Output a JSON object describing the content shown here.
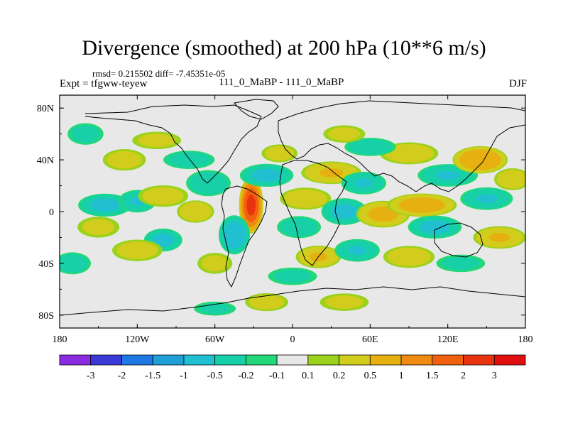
{
  "chart_data": {
    "type": "heatmap",
    "title": "Divergence (smoothed) at 200 hPa (10**6 m/s)",
    "stats": "rmsd= 0.215502 diff= -7.45351e-05",
    "experiment": "Expt = tfgww-teyew",
    "case": "111_0_MaBP - 111_0_MaBP",
    "season": "DJF",
    "xlim": [
      -180,
      180
    ],
    "ylim": [
      -90,
      90
    ],
    "xticks": [
      {
        "value": -180,
        "label": "180"
      },
      {
        "value": -120,
        "label": "120W"
      },
      {
        "value": -60,
        "label": "60W"
      },
      {
        "value": 0,
        "label": "0"
      },
      {
        "value": 60,
        "label": "60E"
      },
      {
        "value": 120,
        "label": "120E"
      },
      {
        "value": 180,
        "label": "180"
      }
    ],
    "yticks": [
      {
        "value": 80,
        "label": "80N"
      },
      {
        "value": 40,
        "label": "40N"
      },
      {
        "value": 0,
        "label": "0"
      },
      {
        "value": -40,
        "label": "40S"
      },
      {
        "value": -80,
        "label": "80S"
      }
    ],
    "colorbar": {
      "colors": [
        "#8a2be2",
        "#3a3ad8",
        "#1e78e6",
        "#1f9ed8",
        "#20c0d0",
        "#18d0a8",
        "#22d878",
        "#e8e8e8",
        "#9ad21c",
        "#d2cc1c",
        "#e6b010",
        "#f08a10",
        "#f0600e",
        "#e8340e",
        "#e01010"
      ],
      "labels": [
        "-3",
        "-2",
        "-1.5",
        "-1",
        "-0.5",
        "-0.2",
        "-0.1",
        "0.1",
        "0.2",
        "0.5",
        "1",
        "1.5",
        "2",
        "3"
      ]
    },
    "features": [
      {
        "lon": -32,
        "lat": 5,
        "value": 2.0,
        "sx": 6,
        "sy": 14
      },
      {
        "lon": -20,
        "lat": 28,
        "value": -0.6,
        "sx": 14,
        "sy": 6
      },
      {
        "lon": -45,
        "lat": -18,
        "value": -0.8,
        "sx": 8,
        "sy": 10
      },
      {
        "lon": -75,
        "lat": 0,
        "value": 0.45,
        "sx": 10,
        "sy": 6
      },
      {
        "lon": -65,
        "lat": 22,
        "value": -0.45,
        "sx": 12,
        "sy": 7
      },
      {
        "lon": -100,
        "lat": -22,
        "value": -0.6,
        "sx": 10,
        "sy": 6
      },
      {
        "lon": -145,
        "lat": 5,
        "value": -0.6,
        "sx": 14,
        "sy": 6
      },
      {
        "lon": -120,
        "lat": 8,
        "value": -0.5,
        "sx": 10,
        "sy": 6
      },
      {
        "lon": -100,
        "lat": 12,
        "value": 0.35,
        "sx": 14,
        "sy": 6
      },
      {
        "lon": -150,
        "lat": -12,
        "value": 0.3,
        "sx": 12,
        "sy": 6
      },
      {
        "lon": -120,
        "lat": -30,
        "value": 0.35,
        "sx": 14,
        "sy": 6
      },
      {
        "lon": -80,
        "lat": 40,
        "value": -0.4,
        "sx": 14,
        "sy": 5
      },
      {
        "lon": -130,
        "lat": 40,
        "value": 0.35,
        "sx": 12,
        "sy": 6
      },
      {
        "lon": -160,
        "lat": 60,
        "value": -0.35,
        "sx": 10,
        "sy": 6
      },
      {
        "lon": -105,
        "lat": 55,
        "value": 0.3,
        "sx": 14,
        "sy": 5
      },
      {
        "lon": -170,
        "lat": -40,
        "value": -0.4,
        "sx": 10,
        "sy": 6
      },
      {
        "lon": -60,
        "lat": -40,
        "value": 0.3,
        "sx": 10,
        "sy": 6
      },
      {
        "lon": 10,
        "lat": 10,
        "value": 0.4,
        "sx": 14,
        "sy": 6
      },
      {
        "lon": 30,
        "lat": 30,
        "value": 0.5,
        "sx": 16,
        "sy": 6
      },
      {
        "lon": 5,
        "lat": -12,
        "value": -0.4,
        "sx": 12,
        "sy": 6
      },
      {
        "lon": 40,
        "lat": 0,
        "value": -0.6,
        "sx": 12,
        "sy": 7
      },
      {
        "lon": 55,
        "lat": 22,
        "value": -0.5,
        "sx": 12,
        "sy": 6
      },
      {
        "lon": 70,
        "lat": -2,
        "value": 0.6,
        "sx": 14,
        "sy": 7
      },
      {
        "lon": 100,
        "lat": 5,
        "value": 0.7,
        "sx": 18,
        "sy": 6
      },
      {
        "lon": 110,
        "lat": -12,
        "value": -0.6,
        "sx": 14,
        "sy": 6
      },
      {
        "lon": 120,
        "lat": 28,
        "value": -0.5,
        "sx": 16,
        "sy": 6
      },
      {
        "lon": 145,
        "lat": 40,
        "value": 0.9,
        "sx": 14,
        "sy": 7
      },
      {
        "lon": 150,
        "lat": 10,
        "value": -0.5,
        "sx": 14,
        "sy": 6
      },
      {
        "lon": 160,
        "lat": -20,
        "value": 0.5,
        "sx": 14,
        "sy": 6
      },
      {
        "lon": 90,
        "lat": 45,
        "value": 0.4,
        "sx": 16,
        "sy": 6
      },
      {
        "lon": 60,
        "lat": 50,
        "value": -0.4,
        "sx": 14,
        "sy": 5
      },
      {
        "lon": 20,
        "lat": -35,
        "value": 0.5,
        "sx": 12,
        "sy": 6
      },
      {
        "lon": 50,
        "lat": -30,
        "value": -0.5,
        "sx": 12,
        "sy": 6
      },
      {
        "lon": 90,
        "lat": -35,
        "value": 0.4,
        "sx": 14,
        "sy": 6
      },
      {
        "lon": 130,
        "lat": -40,
        "value": -0.3,
        "sx": 14,
        "sy": 5
      },
      {
        "lon": 0,
        "lat": -50,
        "value": -0.3,
        "sx": 14,
        "sy": 5
      },
      {
        "lon": -20,
        "lat": -70,
        "value": 0.35,
        "sx": 12,
        "sy": 5
      },
      {
        "lon": 40,
        "lat": -70,
        "value": 0.3,
        "sx": 14,
        "sy": 5
      },
      {
        "lon": -60,
        "lat": -75,
        "value": -0.3,
        "sx": 12,
        "sy": 4
      },
      {
        "lon": 170,
        "lat": 25,
        "value": 0.4,
        "sx": 10,
        "sy": 6
      },
      {
        "lon": -10,
        "lat": 45,
        "value": 0.35,
        "sx": 10,
        "sy": 5
      },
      {
        "lon": 40,
        "lat": 60,
        "value": 0.3,
        "sx": 12,
        "sy": 5
      }
    ]
  }
}
